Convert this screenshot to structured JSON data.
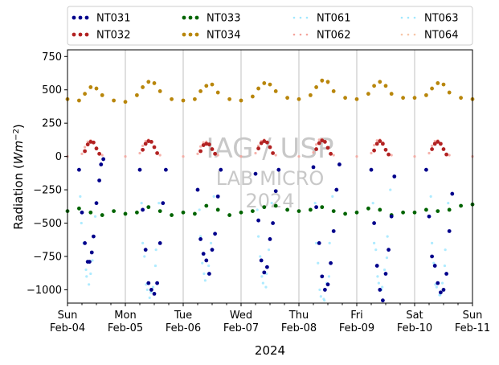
{
  "chart_data": {
    "type": "scatter",
    "xlabel": "2024",
    "ylabel_main": "Radiation (",
    "ylabel_unit": "Wm",
    "ylabel_exp": "−2",
    "ylabel_close": ")",
    "ylim": [
      -1100,
      800
    ],
    "xlim_days": [
      0,
      7
    ],
    "grid": "vertical-daily",
    "legend_placement": "top-outside",
    "y_ticks": [
      {
        "value": 750,
        "label": "750"
      },
      {
        "value": 500,
        "label": "500"
      },
      {
        "value": 250,
        "label": "250"
      },
      {
        "value": 0,
        "label": "0"
      },
      {
        "value": -250,
        "label": "−250"
      },
      {
        "value": -500,
        "label": "−500"
      },
      {
        "value": -750,
        "label": "−750"
      },
      {
        "value": -1000,
        "label": "−1000"
      }
    ],
    "x_ticks": [
      {
        "day": 0,
        "line1": "Sun",
        "line2": "Feb-04"
      },
      {
        "day": 1,
        "line1": "Mon",
        "line2": "Feb-05"
      },
      {
        "day": 2,
        "line1": "Tue",
        "line2": "Feb-06"
      },
      {
        "day": 3,
        "line1": "Wed",
        "line2": "Feb-07"
      },
      {
        "day": 4,
        "line1": "Thu",
        "line2": "Feb-08"
      },
      {
        "day": 5,
        "line1": "Fri",
        "line2": "Feb-09"
      },
      {
        "day": 6,
        "line1": "Sat",
        "line2": "Feb-10"
      },
      {
        "day": 7,
        "line1": "Sun",
        "line2": "Feb-11"
      }
    ],
    "series": [
      {
        "name": "NT031",
        "color": "#00008b",
        "style": "dots",
        "x": [
          0.2,
          0.25,
          0.3,
          0.35,
          0.38,
          0.42,
          0.45,
          0.5,
          0.55,
          0.58,
          0.62,
          1.25,
          1.3,
          1.35,
          1.4,
          1.45,
          1.5,
          1.55,
          1.6,
          1.65,
          1.7,
          2.25,
          2.3,
          2.35,
          2.4,
          2.45,
          2.5,
          2.55,
          2.6,
          2.65,
          3.25,
          3.3,
          3.35,
          3.4,
          3.45,
          3.5,
          3.55,
          3.6,
          3.65,
          4.25,
          4.3,
          4.35,
          4.4,
          4.45,
          4.5,
          4.55,
          4.6,
          4.65,
          4.7,
          5.25,
          5.3,
          5.35,
          5.4,
          5.45,
          5.5,
          5.55,
          5.6,
          5.65,
          6.2,
          6.25,
          6.3,
          6.35,
          6.4,
          6.45,
          6.5,
          6.55,
          6.6,
          6.65
        ],
        "y": [
          -100,
          -420,
          -650,
          -790,
          -790,
          -720,
          -600,
          -350,
          -180,
          -60,
          -20,
          -100,
          -400,
          -700,
          -950,
          -1000,
          -1030,
          -950,
          -650,
          -350,
          -100,
          -250,
          -620,
          -730,
          -780,
          -880,
          -700,
          -580,
          -300,
          -100,
          -130,
          -480,
          -780,
          -870,
          -830,
          -620,
          -500,
          -260,
          -100,
          -80,
          -380,
          -650,
          -900,
          -1000,
          -960,
          -800,
          -560,
          -250,
          -60,
          -100,
          -500,
          -820,
          -1000,
          -1080,
          -880,
          -700,
          -450,
          -150,
          -100,
          -450,
          -750,
          -820,
          -950,
          -1020,
          -1000,
          -880,
          -560,
          -280
        ]
      },
      {
        "name": "NT032",
        "color": "#b22222",
        "style": "dots",
        "x": [
          0.3,
          0.35,
          0.4,
          0.45,
          0.5,
          0.55,
          1.3,
          1.35,
          1.4,
          1.45,
          1.5,
          1.55,
          2.3,
          2.35,
          2.4,
          2.45,
          2.5,
          2.55,
          3.3,
          3.35,
          3.4,
          3.45,
          3.5,
          3.55,
          4.3,
          4.35,
          4.4,
          4.45,
          4.5,
          4.55,
          5.3,
          5.35,
          5.4,
          5.45,
          5.5,
          5.55,
          6.3,
          6.35,
          6.4,
          6.45,
          6.5,
          6.55
        ],
        "y": [
          40,
          90,
          110,
          105,
          60,
          20,
          50,
          95,
          115,
          110,
          70,
          25,
          40,
          85,
          95,
          90,
          55,
          20,
          60,
          100,
          115,
          105,
          70,
          25,
          55,
          100,
          120,
          110,
          65,
          20,
          45,
          95,
          115,
          95,
          50,
          15,
          55,
          95,
          110,
          95,
          55,
          15
        ]
      },
      {
        "name": "NT033",
        "color": "#006400",
        "style": "dots",
        "x": [
          0,
          0.2,
          0.4,
          0.6,
          0.8,
          1,
          1.2,
          1.4,
          1.6,
          1.8,
          2,
          2.2,
          2.4,
          2.6,
          2.8,
          3,
          3.2,
          3.4,
          3.6,
          3.8,
          4,
          4.2,
          4.4,
          4.6,
          4.8,
          5,
          5.2,
          5.4,
          5.6,
          5.8,
          6,
          6.2,
          6.4,
          6.6,
          6.8,
          7
        ],
        "y": [
          -410,
          -390,
          -420,
          -440,
          -410,
          -430,
          -420,
          -380,
          -410,
          -440,
          -420,
          -430,
          -370,
          -400,
          -440,
          -420,
          -410,
          -380,
          -370,
          -400,
          -410,
          -400,
          -380,
          -410,
          -430,
          -420,
          -390,
          -400,
          -440,
          -420,
          -420,
          -400,
          -410,
          -400,
          -370,
          -360
        ]
      },
      {
        "name": "NT034",
        "color": "#b8860b",
        "style": "dots",
        "x": [
          0,
          0.2,
          0.3,
          0.4,
          0.5,
          0.6,
          0.8,
          1,
          1.2,
          1.3,
          1.4,
          1.5,
          1.6,
          1.8,
          2,
          2.2,
          2.3,
          2.4,
          2.5,
          2.6,
          2.8,
          3,
          3.2,
          3.3,
          3.4,
          3.5,
          3.6,
          3.8,
          4,
          4.2,
          4.3,
          4.4,
          4.5,
          4.6,
          4.8,
          5,
          5.2,
          5.3,
          5.4,
          5.5,
          5.6,
          5.8,
          6,
          6.2,
          6.3,
          6.4,
          6.5,
          6.6,
          6.8,
          7
        ],
        "y": [
          430,
          420,
          470,
          520,
          510,
          460,
          420,
          410,
          460,
          520,
          560,
          550,
          490,
          430,
          420,
          430,
          490,
          530,
          540,
          480,
          430,
          420,
          450,
          510,
          550,
          540,
          490,
          440,
          430,
          460,
          520,
          570,
          560,
          490,
          440,
          430,
          470,
          530,
          560,
          530,
          470,
          440,
          440,
          460,
          510,
          550,
          540,
          480,
          440,
          430
        ]
      },
      {
        "name": "NT061",
        "color": "#a0e8ff",
        "style": "dots",
        "x": [
          0.22,
          0.28,
          0.33,
          0.37,
          0.43,
          0.48,
          1.28,
          1.33,
          1.38,
          1.42,
          1.48,
          1.53,
          1.58,
          2.28,
          2.33,
          2.38,
          2.43,
          2.48,
          2.53,
          3.28,
          3.33,
          3.38,
          3.43,
          3.48,
          3.53,
          4.28,
          4.33,
          4.38,
          4.43,
          4.48,
          4.53,
          4.58,
          5.28,
          5.33,
          5.38,
          5.43,
          5.48,
          5.53,
          5.58,
          6.28,
          6.33,
          6.38,
          6.43,
          6.48,
          6.53,
          6.58
        ],
        "y": [
          -300,
          -650,
          -900,
          -960,
          -780,
          -450,
          -350,
          -750,
          -1000,
          -1060,
          -980,
          -700,
          -350,
          -400,
          -800,
          -930,
          -880,
          -650,
          -300,
          -400,
          -750,
          -950,
          -980,
          -700,
          -350,
          -350,
          -800,
          -1050,
          -1070,
          -950,
          -650,
          -300,
          -350,
          -700,
          -950,
          -1000,
          -850,
          -600,
          -250,
          -300,
          -800,
          -980,
          -1040,
          -950,
          -700,
          -350
        ]
      },
      {
        "name": "NT062",
        "color": "#f4a49c",
        "style": "dots",
        "x": [
          0,
          0.25,
          0.3,
          0.35,
          0.4,
          0.45,
          0.5,
          0.6,
          1,
          1.25,
          1.3,
          1.35,
          1.4,
          1.45,
          1.5,
          1.6,
          2,
          2.25,
          2.3,
          2.35,
          2.4,
          2.45,
          2.5,
          2.6,
          3,
          3.25,
          3.3,
          3.35,
          3.4,
          3.45,
          3.5,
          3.6,
          4,
          4.25,
          4.3,
          4.35,
          4.4,
          4.45,
          4.5,
          4.6,
          5,
          5.25,
          5.3,
          5.35,
          5.4,
          5.45,
          5.5,
          5.6,
          6,
          6.25,
          6.3,
          6.35,
          6.4,
          6.45,
          6.5,
          6.6,
          7
        ],
        "y": [
          0,
          20,
          70,
          110,
          120,
          100,
          60,
          10,
          0,
          25,
          80,
          115,
          125,
          115,
          70,
          10,
          0,
          20,
          75,
          105,
          110,
          95,
          55,
          10,
          0,
          25,
          80,
          115,
          125,
          110,
          65,
          10,
          0,
          30,
          90,
          125,
          130,
          115,
          60,
          10,
          0,
          25,
          85,
          120,
          125,
          105,
          55,
          10,
          0,
          25,
          80,
          115,
          120,
          100,
          55,
          10,
          0
        ]
      },
      {
        "name": "NT063",
        "color": "#a0e8ff",
        "style": "dots",
        "x": [
          0.24,
          0.32,
          0.4,
          1.3,
          1.36,
          1.44,
          1.52,
          2.3,
          2.36,
          2.44,
          3.3,
          3.36,
          3.44,
          4.3,
          4.36,
          4.44,
          4.52,
          5.3,
          5.36,
          5.44,
          5.52,
          6.3,
          6.36,
          6.44,
          6.52
        ],
        "y": [
          -500,
          -850,
          -880,
          -650,
          -960,
          -1020,
          -820,
          -600,
          -880,
          -820,
          -600,
          -900,
          -880,
          -650,
          -1000,
          -1080,
          -900,
          -650,
          -900,
          -980,
          -760,
          -650,
          -960,
          -1040,
          -820
        ]
      },
      {
        "name": "NT064",
        "color": "#f7c6a8",
        "style": "dots",
        "x": [
          0,
          0.2,
          0.3,
          0.4,
          0.5,
          0.6,
          0.8,
          1,
          1.2,
          1.3,
          1.4,
          1.5,
          1.6,
          1.8,
          2,
          2.2,
          2.3,
          2.4,
          2.5,
          2.6,
          2.8,
          3,
          3.2,
          3.3,
          3.4,
          3.5,
          3.6,
          3.8,
          4,
          4.2,
          4.3,
          4.4,
          4.5,
          4.6,
          4.8,
          5,
          5.2,
          5.3,
          5.4,
          5.5,
          5.6,
          5.8,
          6,
          6.2,
          6.3,
          6.4,
          6.5,
          6.6,
          6.8,
          7
        ],
        "y": [
          425,
          415,
          465,
          515,
          505,
          455,
          415,
          405,
          455,
          515,
          555,
          545,
          485,
          425,
          415,
          425,
          485,
          525,
          535,
          475,
          425,
          415,
          445,
          505,
          545,
          535,
          485,
          435,
          425,
          455,
          515,
          560,
          550,
          485,
          435,
          425,
          465,
          525,
          555,
          525,
          465,
          435,
          435,
          455,
          505,
          545,
          535,
          475,
          435,
          425
        ]
      }
    ],
    "watermark": {
      "line1": "IAG / USP",
      "line2": "LAB MICRO",
      "line3": "2024"
    }
  }
}
